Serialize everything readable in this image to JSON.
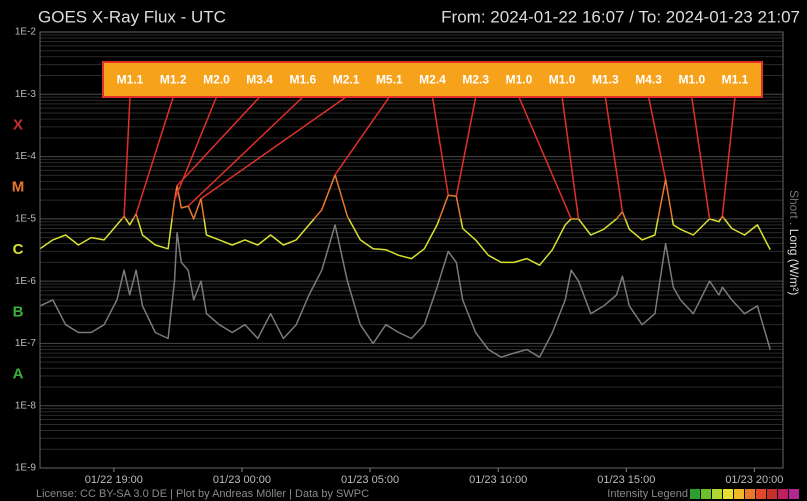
{
  "chart_data": {
    "type": "line",
    "title": "GOES X-Ray Flux - UTC",
    "subtitle": "From: 2024-01-22 16:07  /  To: 2024-01-23 21:07",
    "log_scale": true,
    "grid": true,
    "xlim": [
      "2024-01-22 16:07",
      "2024-01-23 21:07"
    ],
    "xticks": [
      {
        "value": "2024-01-22 19:00",
        "label": "01/22 19:00"
      },
      {
        "value": "2024-01-23 00:00",
        "label": "01/23 00:00"
      },
      {
        "value": "2024-01-23 05:00",
        "label": "01/23 05:00"
      },
      {
        "value": "2024-01-23 10:00",
        "label": "01/23 10:00"
      },
      {
        "value": "2024-01-23 15:00",
        "label": "01/23 15:00"
      },
      {
        "value": "2024-01-23 20:00",
        "label": "01/23 20:00"
      }
    ],
    "ylim": [
      1e-09,
      0.01
    ],
    "yticks": [
      {
        "value": 0.01,
        "label": "1E-2"
      },
      {
        "value": 0.001,
        "label": "1E-3"
      },
      {
        "value": 0.0001,
        "label": "1E-4"
      },
      {
        "value": 1e-05,
        "label": "1E-5"
      },
      {
        "value": 1e-06,
        "label": "1E-6"
      },
      {
        "value": 1e-07,
        "label": "1E-7"
      },
      {
        "value": 1e-08,
        "label": "1E-8"
      },
      {
        "value": 1e-09,
        "label": "1E-9"
      }
    ],
    "classes": [
      {
        "label": "X",
        "value": 0.0001,
        "color": "#c8302c"
      },
      {
        "label": "M",
        "value": 1e-05,
        "color": "#e8782c"
      },
      {
        "label": "C",
        "value": 1e-06,
        "color": "#d8e030"
      },
      {
        "label": "B",
        "value": 1e-07,
        "color": "#3cae3c"
      },
      {
        "label": "A",
        "value": 1e-08,
        "color": "#3cae3c"
      }
    ],
    "x": [
      "2024-01-22 16:07",
      "2024-01-22 16:37",
      "2024-01-22 17:07",
      "2024-01-22 17:37",
      "2024-01-22 18:07",
      "2024-01-22 18:37",
      "2024-01-22 19:07",
      "2024-01-22 19:24",
      "2024-01-22 19:37",
      "2024-01-22 19:52",
      "2024-01-22 20:07",
      "2024-01-22 20:37",
      "2024-01-22 21:07",
      "2024-01-22 21:22",
      "2024-01-22 21:28",
      "2024-01-22 21:38",
      "2024-01-22 21:54",
      "2024-01-22 22:07",
      "2024-01-22 22:24",
      "2024-01-22 22:37",
      "2024-01-22 23:07",
      "2024-01-22 23:37",
      "2024-01-23 00:07",
      "2024-01-23 00:37",
      "2024-01-23 01:07",
      "2024-01-23 01:37",
      "2024-01-23 02:07",
      "2024-01-23 02:37",
      "2024-01-23 03:07",
      "2024-01-23 03:38",
      "2024-01-23 04:07",
      "2024-01-23 04:37",
      "2024-01-23 05:07",
      "2024-01-23 05:37",
      "2024-01-23 06:07",
      "2024-01-23 06:37",
      "2024-01-23 07:07",
      "2024-01-23 07:37",
      "2024-01-23 08:03",
      "2024-01-23 08:22",
      "2024-01-23 08:37",
      "2024-01-23 09:07",
      "2024-01-23 09:37",
      "2024-01-23 10:07",
      "2024-01-23 10:37",
      "2024-01-23 11:07",
      "2024-01-23 11:37",
      "2024-01-23 12:07",
      "2024-01-23 12:37",
      "2024-01-23 12:51",
      "2024-01-23 13:08",
      "2024-01-23 13:37",
      "2024-01-23 14:07",
      "2024-01-23 14:37",
      "2024-01-23 14:51",
      "2024-01-23 15:07",
      "2024-01-23 15:37",
      "2024-01-23 16:07",
      "2024-01-23 16:32",
      "2024-01-23 16:50",
      "2024-01-23 17:07",
      "2024-01-23 17:37",
      "2024-01-23 18:15",
      "2024-01-23 18:37",
      "2024-01-23 18:45",
      "2024-01-23 19:07",
      "2024-01-23 19:37",
      "2024-01-23 20:07",
      "2024-01-23 20:37"
    ],
    "series": [
      {
        "name": "Short",
        "color": "#7a7a7a",
        "values": [
          4e-07,
          5e-07,
          2e-07,
          1.5e-07,
          1.5e-07,
          2e-07,
          5e-07,
          1.5e-06,
          6e-07,
          1.5e-06,
          4e-07,
          1.5e-07,
          1.2e-07,
          1e-06,
          6e-06,
          2e-06,
          1.5e-06,
          5e-07,
          1e-06,
          3e-07,
          2e-07,
          1.5e-07,
          2e-07,
          1.2e-07,
          3e-07,
          1.2e-07,
          2e-07,
          6e-07,
          1.5e-06,
          8e-06,
          1e-06,
          2e-07,
          1e-07,
          2e-07,
          1.5e-07,
          1.2e-07,
          2e-07,
          8e-07,
          3e-06,
          2e-06,
          5e-07,
          1.5e-07,
          8e-08,
          6e-08,
          7e-08,
          8e-08,
          6e-08,
          1.5e-07,
          5e-07,
          1.5e-06,
          1e-06,
          3e-07,
          4e-07,
          6e-07,
          1.2e-06,
          4e-07,
          2e-07,
          3e-07,
          4e-06,
          8e-07,
          5e-07,
          3e-07,
          1e-06,
          6e-07,
          8e-07,
          5e-07,
          3e-07,
          4e-07,
          8e-08
        ]
      },
      {
        "name": "Long (W/m²)",
        "color": "#d8e030",
        "values": [
          3.3e-06,
          4.6e-06,
          5.5e-06,
          3.8e-06,
          5e-06,
          4.6e-06,
          8e-06,
          1.1e-05,
          8e-06,
          1.2e-05,
          5.5e-06,
          3.8e-06,
          3.3e-06,
          2e-05,
          3.4e-05,
          1.5e-05,
          1.6e-05,
          1e-05,
          2.1e-05,
          5.5e-06,
          4.6e-06,
          3.8e-06,
          4.6e-06,
          3.8e-06,
          5.5e-06,
          3.8e-06,
          4.6e-06,
          8e-06,
          1.4e-05,
          5.1e-05,
          1.1e-05,
          4.6e-06,
          3.3e-06,
          3.2e-06,
          2.6e-06,
          2.3e-06,
          3.3e-06,
          8e-06,
          2.4e-05,
          2.3e-05,
          7e-06,
          4.6e-06,
          2.6e-06,
          2e-06,
          2e-06,
          2.3e-06,
          1.8e-06,
          3.2e-06,
          8e-06,
          1e-05,
          1e-05,
          5.5e-06,
          6.8e-06,
          1e-05,
          1.3e-05,
          6.8e-06,
          4.6e-06,
          5.5e-06,
          4.3e-05,
          8e-06,
          6.8e-06,
          5.5e-06,
          1e-05,
          9e-06,
          1.1e-05,
          7e-06,
          5.5e-06,
          8e-06,
          3.2e-06
        ]
      }
    ],
    "flares": [
      {
        "label": "M1.1",
        "time": "2024-01-22 19:24",
        "value": 1.1e-05
      },
      {
        "label": "M1.2",
        "time": "2024-01-22 19:52",
        "value": 1.2e-05
      },
      {
        "label": "M2.0",
        "time": "2024-01-22 21:22",
        "value": 2e-05
      },
      {
        "label": "M3.4",
        "time": "2024-01-22 21:28",
        "value": 3.4e-05
      },
      {
        "label": "M1.6",
        "time": "2024-01-22 21:54",
        "value": 1.6e-05
      },
      {
        "label": "M2.1",
        "time": "2024-01-22 22:24",
        "value": 2.1e-05
      },
      {
        "label": "M5.1",
        "time": "2024-01-23 03:38",
        "value": 5.1e-05
      },
      {
        "label": "M2.4",
        "time": "2024-01-23 08:03",
        "value": 2.4e-05
      },
      {
        "label": "M2.3",
        "time": "2024-01-23 08:22",
        "value": 2.3e-05
      },
      {
        "label": "M1.0",
        "time": "2024-01-23 12:51",
        "value": 1e-05
      },
      {
        "label": "M1.0",
        "time": "2024-01-23 13:08",
        "value": 1e-05
      },
      {
        "label": "M1.3",
        "time": "2024-01-23 14:51",
        "value": 1.3e-05
      },
      {
        "label": "M4.3",
        "time": "2024-01-23 16:32",
        "value": 4.3e-05
      },
      {
        "label": "M1.0",
        "time": "2024-01-23 18:15",
        "value": 1e-05
      },
      {
        "label": "M1.1",
        "time": "2024-01-23 18:45",
        "value": 1.1e-05
      }
    ],
    "flare_box_color": "#f7a21b",
    "flare_line_color": "#e0302a",
    "footer": "License: CC BY-SA 3.0 DE | Plot by Andreas Möller | Data by SWPC",
    "intensity_legend": {
      "label": "Intensity Legend",
      "colors": [
        "#2e9e2e",
        "#6cc02c",
        "#b0d830",
        "#e8e030",
        "#f0b828",
        "#e8782c",
        "#e04828",
        "#c8302c",
        "#c02060",
        "#b02890"
      ]
    }
  }
}
